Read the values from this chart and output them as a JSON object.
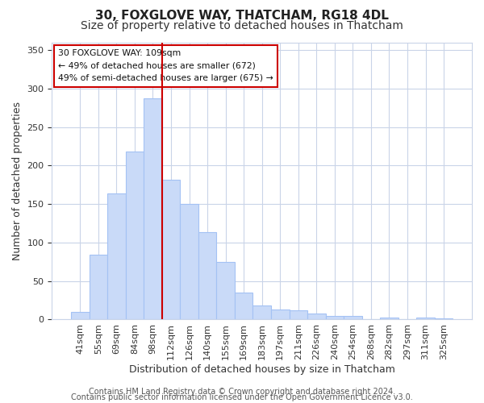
{
  "title": "30, FOXGLOVE WAY, THATCHAM, RG18 4DL",
  "subtitle": "Size of property relative to detached houses in Thatcham",
  "xlabel": "Distribution of detached houses by size in Thatcham",
  "ylabel": "Number of detached properties",
  "bar_labels": [
    "41sqm",
    "55sqm",
    "69sqm",
    "84sqm",
    "98sqm",
    "112sqm",
    "126sqm",
    "140sqm",
    "155sqm",
    "169sqm",
    "183sqm",
    "197sqm",
    "211sqm",
    "226sqm",
    "240sqm",
    "254sqm",
    "268sqm",
    "282sqm",
    "297sqm",
    "311sqm",
    "325sqm"
  ],
  "bar_values": [
    10,
    84,
    164,
    218,
    287,
    182,
    150,
    113,
    75,
    35,
    18,
    13,
    12,
    8,
    5,
    5,
    1,
    3,
    1,
    3,
    2
  ],
  "bar_color": "#c9daf8",
  "bar_edge_color": "#a4c2f4",
  "vline_pos": 4.5,
  "vline_color": "#cc0000",
  "annotation_title": "30 FOXGLOVE WAY: 109sqm",
  "annotation_line1": "← 49% of detached houses are smaller (672)",
  "annotation_line2": "49% of semi-detached houses are larger (675) →",
  "annotation_box_color": "#ffffff",
  "annotation_box_edge": "#cc0000",
  "ylim": [
    0,
    360
  ],
  "yticks": [
    0,
    50,
    100,
    150,
    200,
    250,
    300,
    350
  ],
  "footer1": "Contains HM Land Registry data © Crown copyright and database right 2024.",
  "footer2": "Contains public sector information licensed under the Open Government Licence v3.0.",
  "background_color": "#ffffff",
  "grid_color": "#c9d4e8",
  "title_fontsize": 11,
  "subtitle_fontsize": 10,
  "axis_label_fontsize": 9,
  "tick_fontsize": 8,
  "footer_fontsize": 7
}
